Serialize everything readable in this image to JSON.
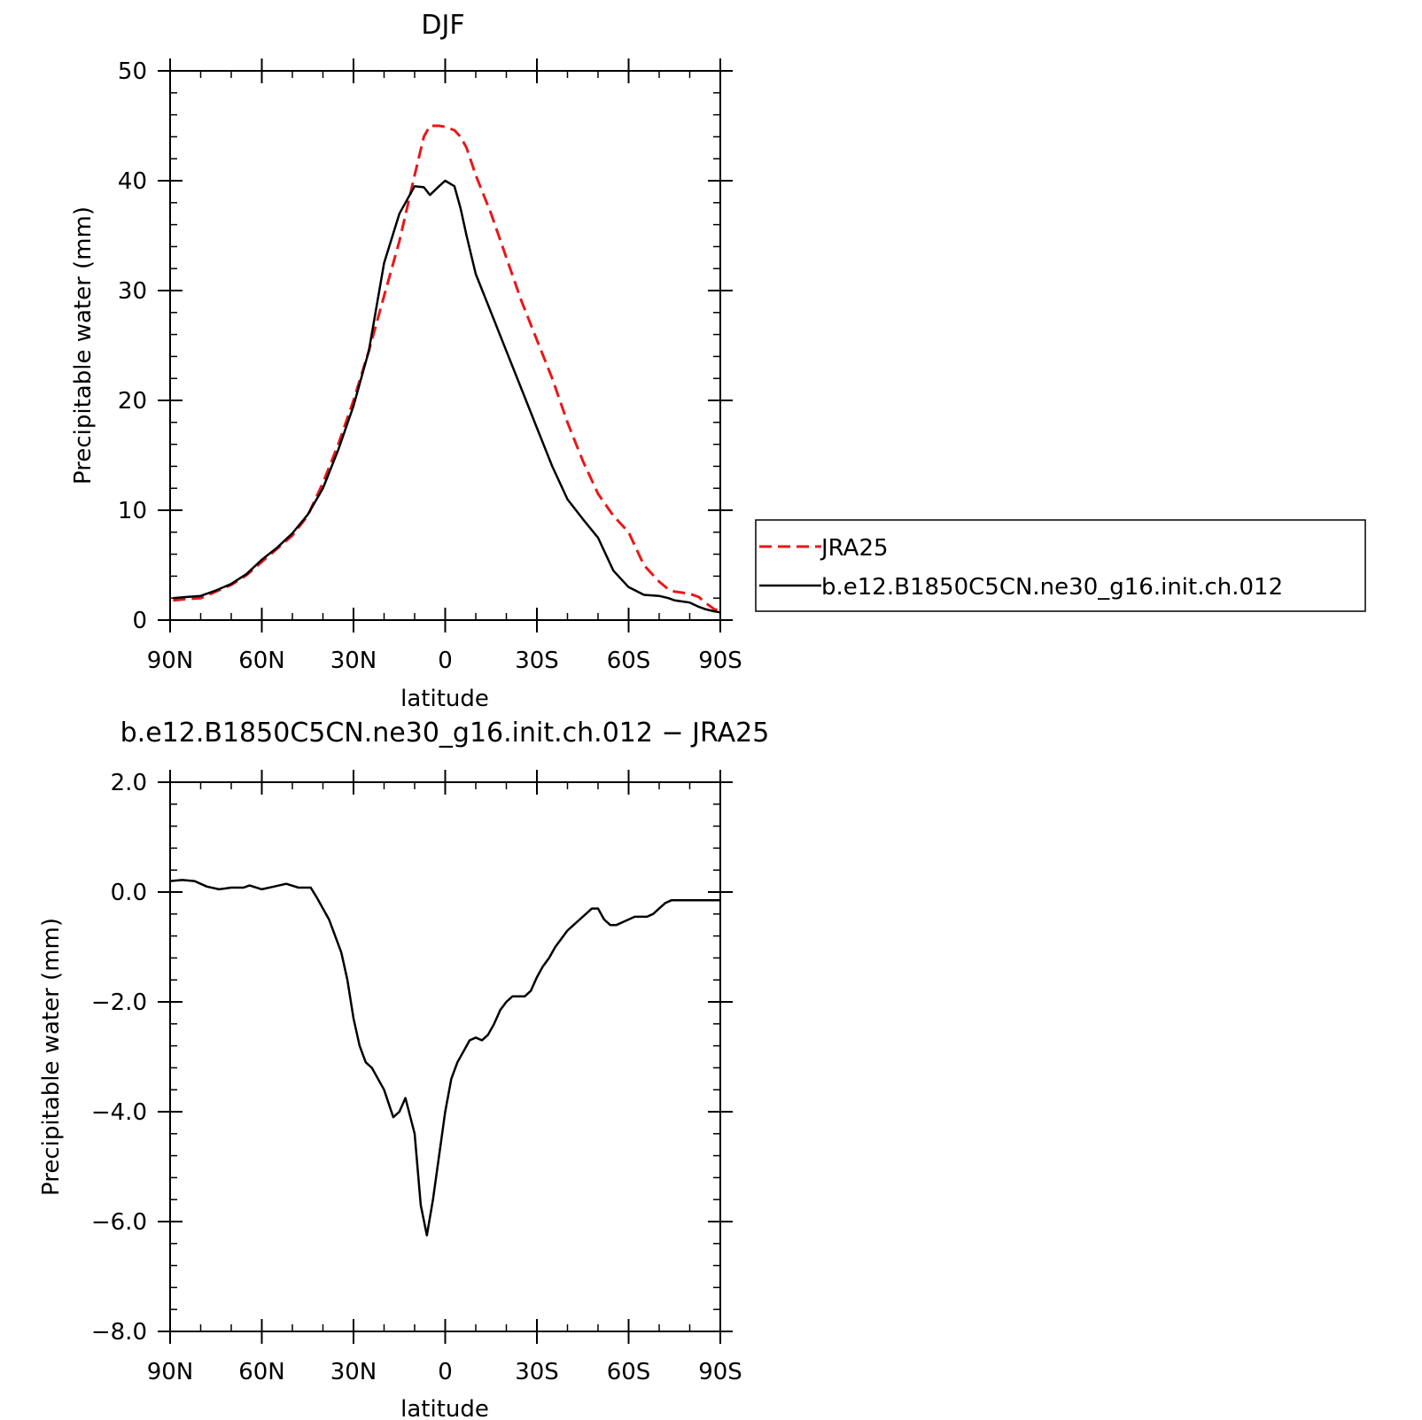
{
  "chart_data": [
    {
      "type": "line",
      "title": "DJF",
      "xlabel": "latitude",
      "ylabel": "Precipitable water (mm)",
      "xlim": [
        90,
        -90
      ],
      "ylim": [
        0,
        50
      ],
      "yticks": [
        "0",
        "10",
        "20",
        "30",
        "40",
        "50"
      ],
      "xticks": [
        "90N",
        "60N",
        "30N",
        "0",
        "30S",
        "60S",
        "90S"
      ],
      "series": [
        {
          "name": "JRA25",
          "color": "#e8171a",
          "dash": "dashed",
          "x": [
            89,
            85,
            80,
            75,
            70,
            65,
            60,
            55,
            50,
            45,
            40,
            35,
            30,
            25,
            20,
            15,
            10,
            7,
            5,
            2,
            0,
            -3,
            -5,
            -7,
            -10,
            -15,
            -20,
            -25,
            -30,
            -35,
            -40,
            -45,
            -50,
            -55,
            -60,
            -65,
            -70,
            -73,
            -75,
            -80,
            -83,
            -85,
            -88,
            -90
          ],
          "y": [
            1.8,
            1.9,
            2.0,
            2.6,
            3.2,
            4.1,
            5.3,
            6.5,
            7.7,
            9.5,
            12.5,
            16.0,
            20.0,
            24.5,
            29.5,
            34.5,
            40.5,
            44.0,
            45.0,
            45.0,
            44.9,
            44.6,
            44.0,
            43.0,
            40.5,
            37.0,
            33.0,
            29.0,
            25.5,
            22.0,
            18.0,
            14.5,
            11.5,
            9.5,
            8.0,
            5.0,
            3.5,
            2.8,
            2.6,
            2.4,
            2.1,
            1.6,
            1.0,
            0.8
          ]
        },
        {
          "name": "b.e12.B1850C5CN.ne30_g16.init.ch.012",
          "color": "#000000",
          "dash": "solid",
          "x": [
            89,
            85,
            80,
            75,
            70,
            65,
            60,
            55,
            50,
            45,
            40,
            35,
            30,
            25,
            20,
            15,
            10,
            7,
            5,
            2,
            0,
            -3,
            -5,
            -7,
            -10,
            -15,
            -20,
            -25,
            -30,
            -35,
            -40,
            -45,
            -50,
            -55,
            -60,
            -65,
            -70,
            -73,
            -75,
            -80,
            -83,
            -85,
            -88,
            -90
          ],
          "y": [
            2.0,
            2.1,
            2.2,
            2.7,
            3.3,
            4.2,
            5.5,
            6.6,
            7.9,
            9.6,
            12.0,
            15.5,
            19.5,
            24.5,
            32.5,
            37.0,
            39.5,
            39.4,
            38.7,
            39.5,
            40.0,
            39.5,
            37.5,
            35.0,
            31.5,
            28.0,
            24.5,
            21.0,
            17.5,
            14.0,
            11.0,
            9.2,
            7.5,
            4.5,
            3.0,
            2.3,
            2.2,
            2.0,
            1.8,
            1.6,
            1.2,
            1.0,
            0.8,
            0.7
          ]
        }
      ],
      "legend": {
        "placement": "right",
        "entries": [
          "JRA25",
          "b.e12.B1850C5CN.ne30_g16.init.ch.012"
        ]
      }
    },
    {
      "type": "line",
      "title": "b.e12.B1850C5CN.ne30_g16.init.ch.012 − JRA25",
      "xlabel": "latitude",
      "ylabel": "Precipitable water (mm)",
      "xlim": [
        90,
        -90
      ],
      "ylim": [
        -8,
        2
      ],
      "yticks": [
        "2.0",
        "0.0",
        "−2.0",
        "−4.0",
        "−6.0",
        "−8.0"
      ],
      "xticks": [
        "90N",
        "60N",
        "30N",
        "0",
        "30S",
        "60S",
        "90S"
      ],
      "series": [
        {
          "color": "#000000",
          "dash": "solid",
          "x": [
            90,
            86,
            82,
            78,
            74,
            70,
            66,
            64,
            60,
            56,
            52,
            48,
            46,
            44,
            42,
            40,
            38,
            36,
            34,
            32,
            30,
            28,
            26,
            24,
            22,
            20,
            17,
            15,
            13,
            10,
            8,
            6,
            4,
            2,
            0,
            -2,
            -4,
            -6,
            -8,
            -10,
            -12,
            -14,
            -16,
            -18,
            -20,
            -22,
            -24,
            -26,
            -28,
            -30,
            -32,
            -34,
            -36,
            -38,
            -40,
            -42,
            -44,
            -46,
            -48,
            -50,
            -52,
            -54,
            -56,
            -58,
            -60,
            -62,
            -64,
            -66,
            -68,
            -70,
            -72,
            -74,
            -76,
            -78,
            -80,
            -82,
            -84,
            -86,
            -88,
            -90
          ],
          "y": [
            0.2,
            0.22,
            0.2,
            0.1,
            0.05,
            0.08,
            0.08,
            0.12,
            0.05,
            0.1,
            0.15,
            0.08,
            0.08,
            0.08,
            -0.1,
            -0.3,
            -0.5,
            -0.8,
            -1.1,
            -1.6,
            -2.3,
            -2.8,
            -3.1,
            -3.2,
            -3.4,
            -3.6,
            -4.1,
            -4.0,
            -3.75,
            -4.4,
            -5.7,
            -6.25,
            -5.6,
            -4.8,
            -4.0,
            -3.4,
            -3.1,
            -2.9,
            -2.7,
            -2.65,
            -2.7,
            -2.6,
            -2.4,
            -2.15,
            -2.0,
            -1.9,
            -1.9,
            -1.9,
            -1.8,
            -1.55,
            -1.35,
            -1.2,
            -1.0,
            -0.85,
            -0.7,
            -0.6,
            -0.5,
            -0.4,
            -0.3,
            -0.3,
            -0.5,
            -0.6,
            -0.6,
            -0.55,
            -0.5,
            -0.45,
            -0.45,
            -0.45,
            -0.4,
            -0.3,
            -0.2,
            -0.15,
            -0.15,
            -0.15,
            -0.15,
            -0.15,
            -0.15,
            -0.15,
            -0.15,
            -0.15
          ]
        }
      ]
    }
  ]
}
